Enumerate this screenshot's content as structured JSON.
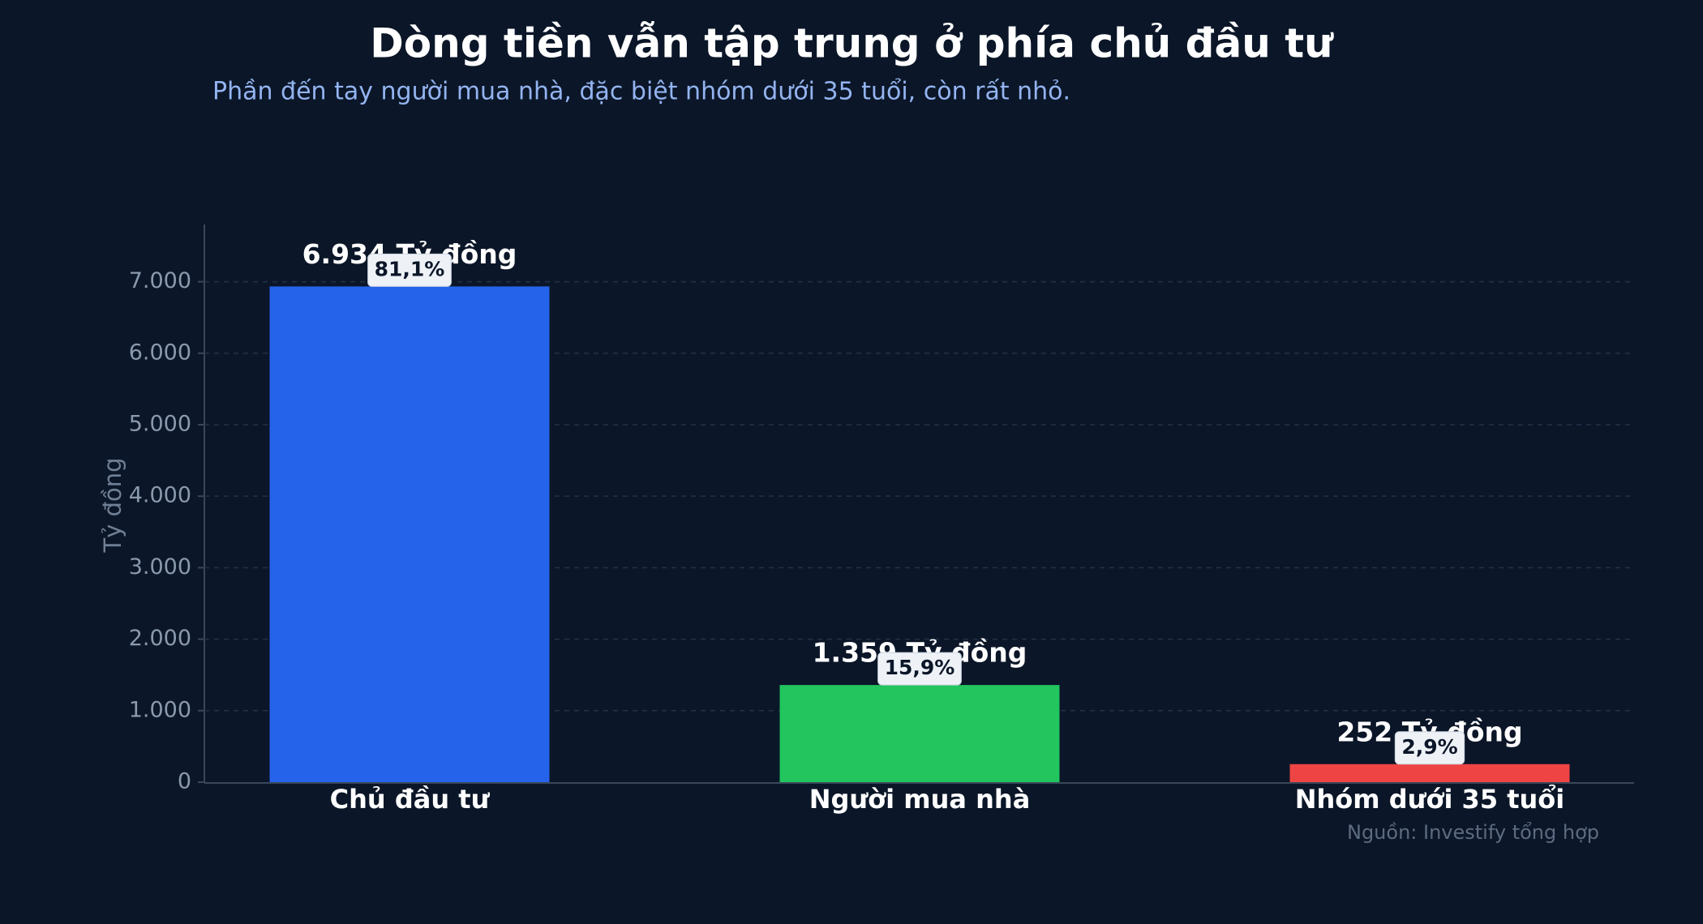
{
  "chart_data": {
    "type": "bar",
    "title": "Dòng tiền vẫn tập trung ở phía chủ đầu tư",
    "subtitle": "Phần đến tay người mua nhà, đặc biệt nhóm dưới 35 tuổi, còn rất nhỏ.",
    "y_label": "Tỷ đồng",
    "source": "Nguồn: Investify tổng hợp",
    "categories": [
      "Chủ đầu tư",
      "Người mua nhà",
      "Nhóm dưới 35 tuổi"
    ],
    "values": [
      6934,
      1359,
      252
    ],
    "value_labels": [
      "6.934 Tỷ đồng",
      "1.359 Tỷ đồng",
      "252 Tỷ đồng"
    ],
    "shares": [
      81.1,
      15.9,
      2.9
    ],
    "share_labels": [
      "81,1%",
      "15,9%",
      "2,9%"
    ],
    "colors": [
      "#2563eb",
      "#22c55e",
      "#ef4444"
    ],
    "ylim": [
      0,
      7800
    ],
    "yticks": [
      0,
      {
        "value": 1000,
        "label": "1.000"
      },
      {
        "value": 2000,
        "label": "2.000"
      },
      {
        "value": 3000,
        "label": "3.000"
      },
      {
        "value": 4000,
        "label": "4.000"
      },
      {
        "value": 5000,
        "label": "5.000"
      },
      {
        "value": 6000,
        "label": "6.000"
      },
      {
        "value": 7000,
        "label": "7.000"
      }
    ],
    "grid": true
  }
}
